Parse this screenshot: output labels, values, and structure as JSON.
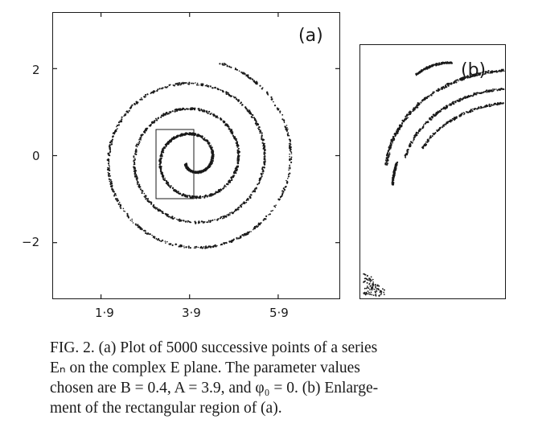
{
  "figure": {
    "panel_a_label": "(a)",
    "panel_b_label": "(b)",
    "x_ticks": [
      "1·9",
      "3·9",
      "5·9"
    ],
    "y_ticks": [
      "2",
      "0",
      "−2"
    ]
  },
  "caption": {
    "line1": "FIG. 2.  (a) Plot of 5000 successive points of a series",
    "line2": "Eₙ on the complex E plane.  The parameter values",
    "line3": "chosen are B = 0.4,  A = 3.9,  and  φ₀ = 0.  (b) Enlarge-",
    "line4": "ment of the rectangular region of (a)."
  },
  "chart_data": [
    {
      "type": "scatter",
      "title": "(a)",
      "xlabel": "",
      "ylabel": "",
      "xlim": [
        0.8,
        7.3
      ],
      "ylim": [
        -3.3,
        3.3
      ],
      "x_ticks": [
        1.9,
        3.9,
        5.9
      ],
      "y_ticks": [
        2,
        0,
        -2
      ],
      "description_points": "spiral attractor, 5000 points",
      "inset_rect": {
        "x": [
          2.9,
          3.75
        ],
        "y": [
          -1.0,
          0.55
        ]
      }
    },
    {
      "type": "scatter",
      "title": "(b)",
      "xlim": [
        2.9,
        3.75
      ],
      "ylim": [
        -1.0,
        0.55
      ]
    }
  ]
}
